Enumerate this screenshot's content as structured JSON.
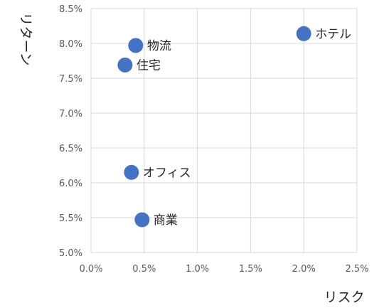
{
  "chart_data": {
    "type": "scatter",
    "xlabel": "リスク",
    "ylabel": "リターン",
    "xlim": [
      0.0,
      2.5
    ],
    "ylim": [
      5.0,
      8.5
    ],
    "x_ticks": [
      "0.0%",
      "0.5%",
      "1.0%",
      "1.5%",
      "2.0%",
      "2.5%"
    ],
    "y_ticks": [
      "5.0%",
      "5.5%",
      "6.0%",
      "6.5%",
      "7.0%",
      "7.5%",
      "8.0%",
      "8.5%"
    ],
    "x_tick_values": [
      0.0,
      0.5,
      1.0,
      1.5,
      2.0,
      2.5
    ],
    "y_tick_values": [
      5.0,
      5.5,
      6.0,
      6.5,
      7.0,
      7.5,
      8.0,
      8.5
    ],
    "grid": true,
    "points": [
      {
        "label": "ホテル",
        "x": 2.0,
        "y": 8.14
      },
      {
        "label": "物流",
        "x": 0.42,
        "y": 7.97
      },
      {
        "label": "住宅",
        "x": 0.32,
        "y": 7.69
      },
      {
        "label": "オフィス",
        "x": 0.38,
        "y": 6.15
      },
      {
        "label": "商業",
        "x": 0.48,
        "y": 5.47
      }
    ],
    "colors": {
      "marker": "#4472C4",
      "grid": "#D9D9D9"
    }
  }
}
